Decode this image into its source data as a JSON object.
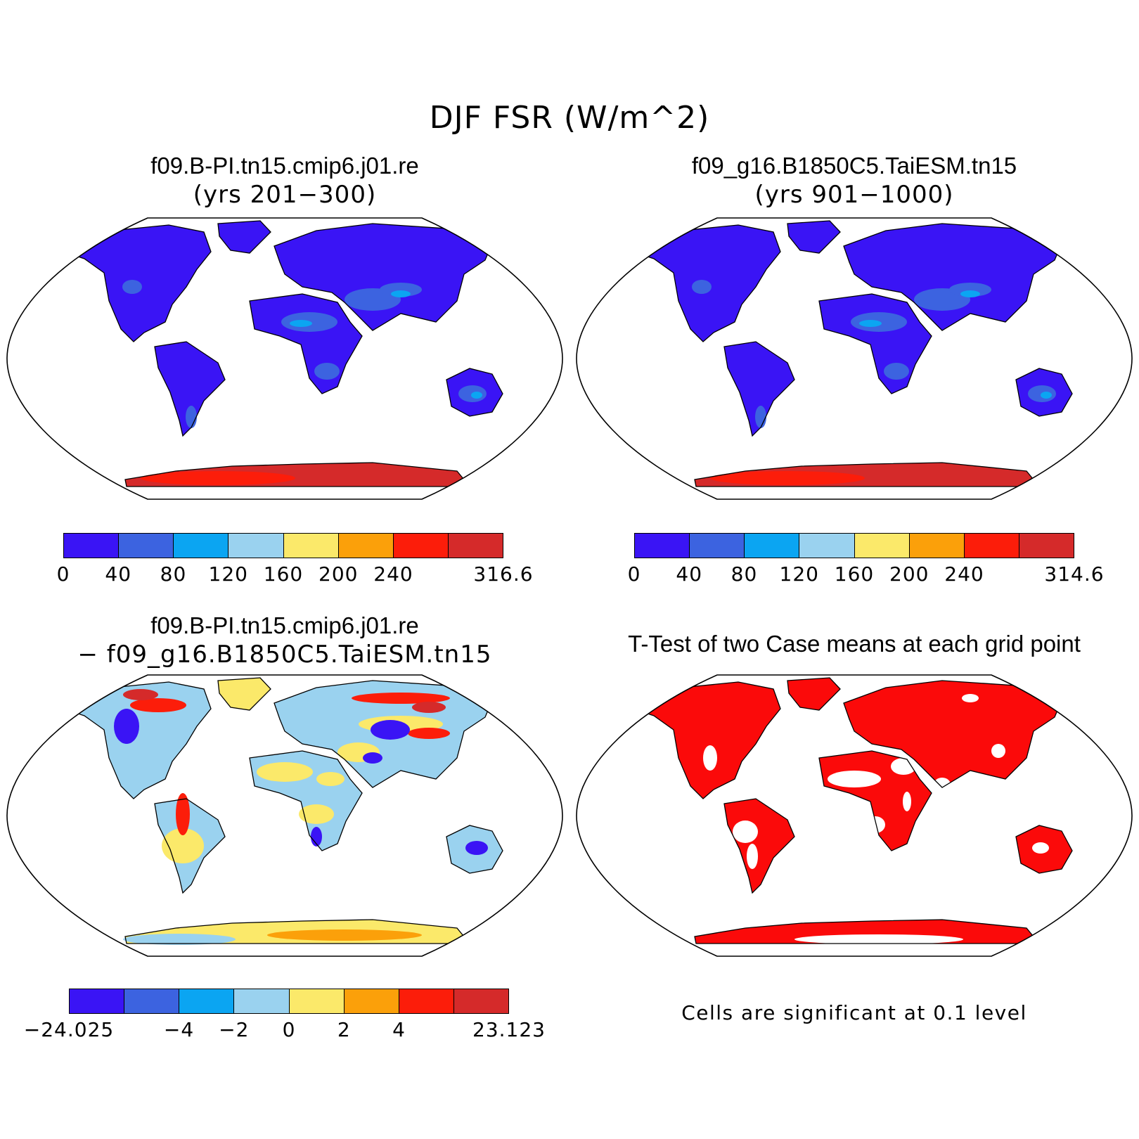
{
  "main_title": "DJF FSR (W/m^2)",
  "panels": [
    {
      "title": "f09.B-PI.tn15.cmip6.j01.re",
      "subtitle": "(yrs 201−300)",
      "map_style": "field",
      "colorbar": {
        "colors": [
          "#3a14f5",
          "#3c63e0",
          "#0ba5f2",
          "#9ad2ef",
          "#fbe96a",
          "#fba00a",
          "#fc1d0a",
          "#d52a2a"
        ],
        "labels": [
          "0",
          "40",
          "80",
          "120",
          "160",
          "200",
          "240",
          "316.6"
        ],
        "label_edges": [
          0,
          1,
          2,
          3,
          4,
          5,
          6,
          8
        ]
      }
    },
    {
      "title": "f09_g16.B1850C5.TaiESM.tn15",
      "subtitle": "(yrs 901−1000)",
      "map_style": "field",
      "colorbar": {
        "colors": [
          "#3a14f5",
          "#3c63e0",
          "#0ba5f2",
          "#9ad2ef",
          "#fbe96a",
          "#fba00a",
          "#fc1d0a",
          "#d52a2a"
        ],
        "labels": [
          "0",
          "40",
          "80",
          "120",
          "160",
          "200",
          "240",
          "314.6"
        ],
        "label_edges": [
          0,
          1,
          2,
          3,
          4,
          5,
          6,
          8
        ]
      }
    },
    {
      "title": "f09.B-PI.tn15.cmip6.j01.re",
      "subtitle": "− f09_g16.B1850C5.TaiESM.tn15",
      "map_style": "diff",
      "colorbar": {
        "colors": [
          "#3a14f5",
          "#3c63e0",
          "#0ba5f2",
          "#9ad2ef",
          "#fbe96a",
          "#fba00a",
          "#fc1d0a",
          "#d52a2a"
        ],
        "labels": [
          "−24.025",
          "−4",
          "−2",
          "0",
          "2",
          "4",
          "23.123"
        ],
        "label_edges": [
          0,
          2,
          3,
          4,
          5,
          6,
          8
        ]
      }
    },
    {
      "title": "T-Test of two Case means at each grid point",
      "subtitle": "",
      "map_style": "ttest",
      "note": "Cells are significant at 0.1 level"
    }
  ],
  "colors": {
    "land_low": "#3a14f5",
    "land_mid": "#3c63e0",
    "antarctic": "#d52a2a",
    "significant": "#fb0a0a",
    "diff_base": "#fbe96a"
  }
}
